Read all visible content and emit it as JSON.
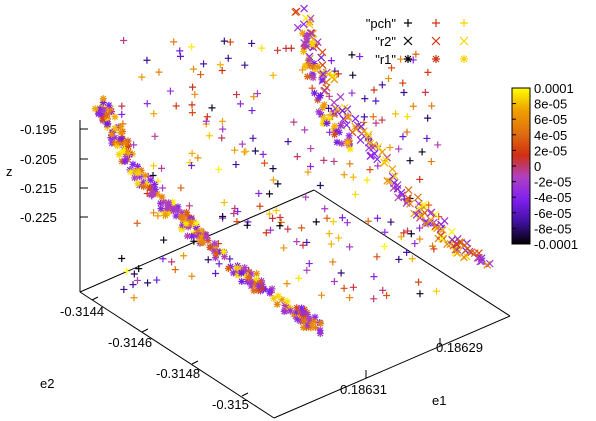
{
  "chart_data": {
    "type": "scatter",
    "subtype": "3d",
    "title": "",
    "axes": {
      "x": {
        "label": "e1",
        "ticks": [
          "0.18629",
          "0.18631"
        ]
      },
      "y": {
        "label": "e2",
        "ticks": [
          "-0.3144",
          "-0.3146",
          "-0.3148",
          "-0.315"
        ]
      },
      "z": {
        "label": "z",
        "ticks": [
          "-0.195",
          "-0.205",
          "-0.215",
          "-0.225"
        ]
      }
    },
    "legend": {
      "placement": "top-right",
      "entries": [
        {
          "label": "\"pch\"",
          "symbol": "+",
          "colors": [
            "#000000",
            "#d03010",
            "#ffd000"
          ]
        },
        {
          "label": "\"r2\"",
          "symbol": "×",
          "colors": [
            "#000000",
            "#d03010",
            "#ffd000"
          ]
        },
        {
          "label": "\"r1\"",
          "symbol": "✱",
          "colors": [
            "#000000",
            "#d03010",
            "#ffd000"
          ]
        }
      ]
    },
    "colorbar": {
      "ticks": [
        "0.0001",
        "8e-05",
        "6e-05",
        "4e-05",
        "2e-05",
        "0",
        "-2e-05",
        "-4e-05",
        "-6e-05",
        "-8e-05",
        "-0.0001"
      ],
      "range": [
        -0.0001,
        0.0001
      ],
      "palette": [
        "#000000",
        "#4010a0",
        "#8020f0",
        "#b040c0",
        "#d03010",
        "#e07010",
        "#f0a000",
        "#ffff00"
      ]
    },
    "series": [
      {
        "name": "\"pch\"",
        "marker": "plus"
      },
      {
        "name": "\"r2\"",
        "marker": "cross"
      },
      {
        "name": "\"r1\"",
        "marker": "star"
      }
    ]
  }
}
